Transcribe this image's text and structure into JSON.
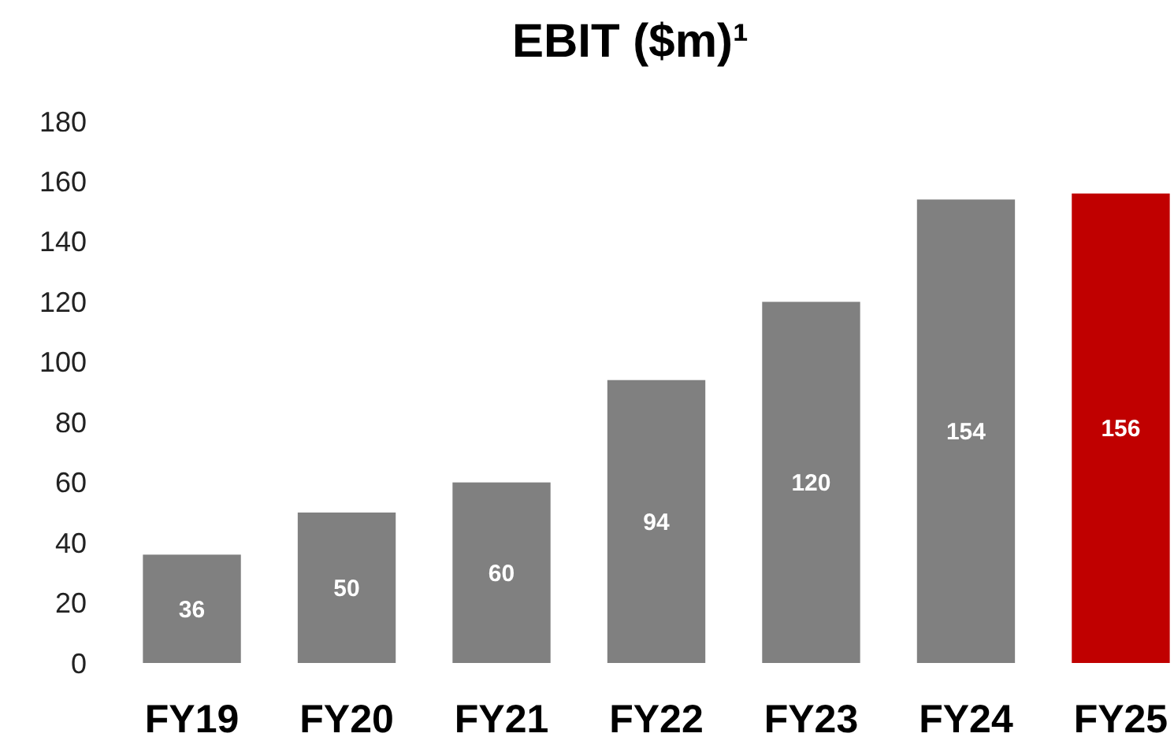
{
  "chart_data": {
    "type": "bar",
    "title": "EBIT ($m)¹",
    "categories": [
      "FY19",
      "FY20",
      "FY21",
      "FY22",
      "FY23",
      "FY24",
      "FY25"
    ],
    "values": [
      36,
      50,
      60,
      94,
      120,
      154,
      156
    ],
    "colors": [
      "#808080",
      "#808080",
      "#808080",
      "#808080",
      "#808080",
      "#808080",
      "#c00000"
    ],
    "ylim": [
      0,
      180
    ],
    "yticks": [
      0,
      20,
      40,
      60,
      80,
      100,
      120,
      140,
      160,
      180
    ],
    "data_labels": true,
    "grid": false
  }
}
